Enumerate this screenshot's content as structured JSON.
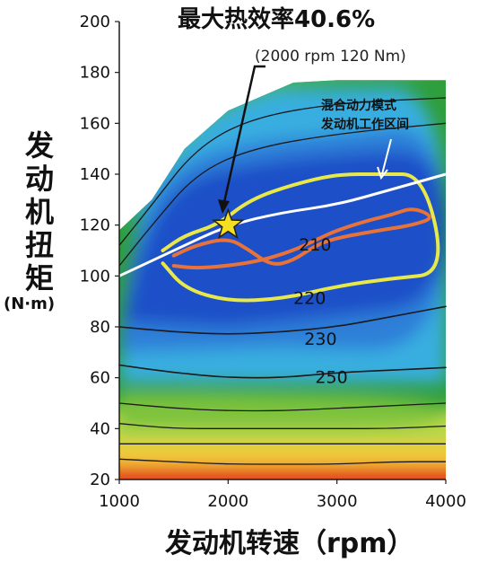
{
  "chart_data": {
    "type": "heatmap",
    "title": "最大热效率40.6%",
    "subtitle": "(2000 rpm 120 Nm)",
    "xlabel": "发动机转速（rpm）",
    "ylabel_chars": [
      "发",
      "动",
      "机",
      "扭",
      "矩"
    ],
    "ylabel_unit": "(N·m)",
    "xlim": [
      1000,
      4000
    ],
    "ylim": [
      20,
      200
    ],
    "xticks": [
      1000,
      2000,
      3000,
      4000
    ],
    "yticks": [
      20,
      40,
      60,
      80,
      100,
      120,
      140,
      160,
      180,
      200
    ],
    "grid": false,
    "max_efficiency_point": {
      "rpm": 2000,
      "torque": 120,
      "efficiency_pct": 40.6
    },
    "hybrid_region_label": [
      "混合动力模式",
      "发动机工作区间"
    ],
    "max_torque_envelope": [
      [
        1000,
        118
      ],
      [
        1300,
        130
      ],
      [
        1600,
        150
      ],
      [
        2000,
        165
      ],
      [
        2600,
        176
      ],
      [
        3000,
        177
      ],
      [
        3500,
        177
      ],
      [
        4000,
        177
      ]
    ],
    "contours": [
      {
        "label": "210",
        "color": "#e8733a",
        "points": [
          [
            1500,
            104
          ],
          [
            1700,
            103
          ],
          [
            2000,
            104
          ],
          [
            2300,
            106
          ],
          [
            2600,
            110
          ],
          [
            2800,
            114
          ],
          [
            3000,
            118
          ],
          [
            3300,
            122
          ],
          [
            3500,
            124
          ],
          [
            3700,
            127
          ],
          [
            3900,
            123
          ],
          [
            3700,
            120
          ],
          [
            3400,
            118
          ],
          [
            3000,
            115
          ],
          [
            2800,
            112
          ],
          [
            2600,
            106
          ],
          [
            2400,
            104
          ],
          [
            2200,
            110
          ],
          [
            2000,
            115
          ],
          [
            1700,
            112
          ],
          [
            1500,
            108
          ]
        ]
      },
      {
        "label": "220",
        "color": "#e8e84a",
        "points": [
          [
            1400,
            105
          ],
          [
            1600,
            95
          ],
          [
            2000,
            90
          ],
          [
            2500,
            91
          ],
          [
            3000,
            96
          ],
          [
            3500,
            99
          ],
          [
            4000,
            101
          ],
          [
            3800,
            140
          ],
          [
            3400,
            140
          ],
          [
            3000,
            140
          ],
          [
            2600,
            136
          ],
          [
            2200,
            130
          ],
          [
            1900,
            120
          ],
          [
            1600,
            116
          ],
          [
            1400,
            110
          ]
        ]
      },
      {
        "label": "230",
        "color": "#1a1a1a",
        "points": [
          [
            1000,
            80
          ],
          [
            1500,
            78
          ],
          [
            2000,
            77
          ],
          [
            2500,
            78
          ],
          [
            3000,
            80
          ],
          [
            3500,
            84
          ],
          [
            4000,
            88
          ]
        ]
      },
      {
        "label": "250",
        "color": "#1a1a1a",
        "points": [
          [
            1000,
            65
          ],
          [
            1500,
            62
          ],
          [
            2000,
            60
          ],
          [
            2500,
            60
          ],
          [
            3000,
            62
          ],
          [
            3500,
            63
          ],
          [
            4000,
            64
          ]
        ]
      }
    ],
    "other_isolines": [
      [
        [
          1000,
          50
        ],
        [
          1500,
          48
        ],
        [
          2000,
          47
        ],
        [
          2500,
          47
        ],
        [
          3000,
          48
        ],
        [
          3500,
          49
        ],
        [
          4000,
          50
        ]
      ],
      [
        [
          1000,
          42
        ],
        [
          1500,
          40
        ],
        [
          2000,
          40
        ],
        [
          2500,
          40
        ],
        [
          3000,
          40
        ],
        [
          3500,
          40
        ],
        [
          4000,
          41
        ]
      ],
      [
        [
          1000,
          34
        ],
        [
          1500,
          34
        ],
        [
          2000,
          34
        ],
        [
          2500,
          34
        ],
        [
          3000,
          34
        ],
        [
          3500,
          34
        ],
        [
          4000,
          34
        ]
      ],
      [
        [
          1000,
          28
        ],
        [
          1500,
          27
        ],
        [
          2000,
          26
        ],
        [
          2500,
          26
        ],
        [
          3000,
          26
        ],
        [
          3500,
          27
        ],
        [
          4000,
          27
        ]
      ]
    ],
    "hybrid_operating_line": [
      [
        1000,
        100
      ],
      [
        1500,
        110
      ],
      [
        2000,
        120
      ],
      [
        2500,
        125
      ],
      [
        3000,
        128
      ],
      [
        3500,
        134
      ],
      [
        4000,
        140
      ]
    ],
    "colors": {
      "envelope_outer": "#2f9e3c",
      "high_efficiency": "#1f4fc8",
      "mid_efficiency": "#37aee0",
      "low_efficiency": "#b9d84a",
      "very_low_efficiency": "#f3c93a",
      "lowest_efficiency": "#e23a1c",
      "star": "#f4e021"
    }
  }
}
